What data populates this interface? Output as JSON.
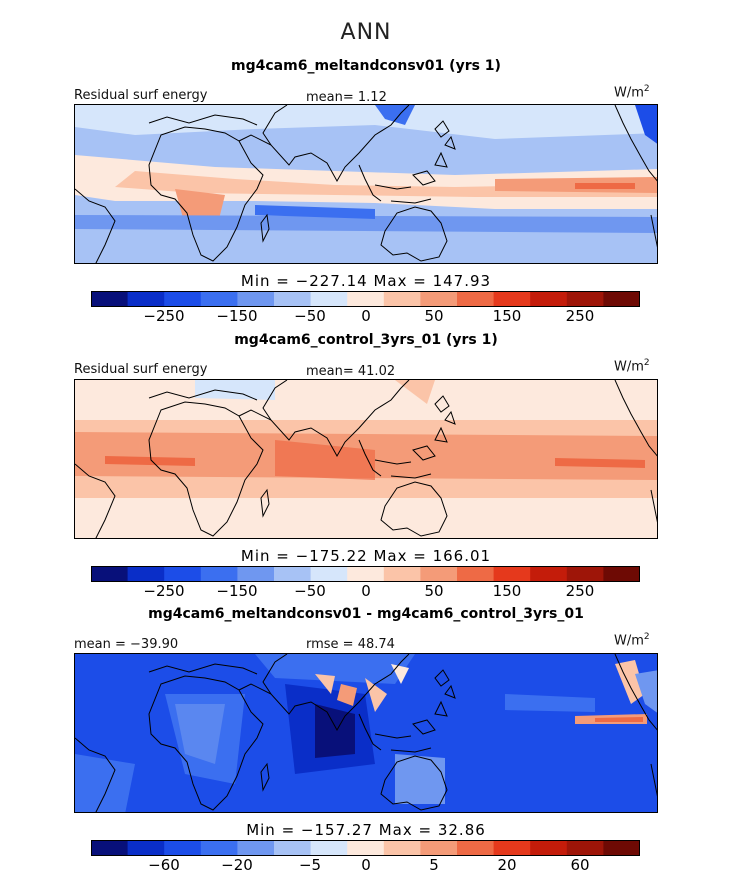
{
  "figure": {
    "season": "ANN"
  },
  "colorbar": {
    "colors": [
      "#08107a",
      "#0a2ec8",
      "#1c4de8",
      "#3b6ff0",
      "#6f97f0",
      "#a7c2f5",
      "#d6e6fb",
      "#fde9dd",
      "#fbc4a8",
      "#f49b78",
      "#ee6a45",
      "#e5391c",
      "#c41c0a",
      "#9e1508",
      "#6e0a04"
    ]
  },
  "panels": [
    {
      "title": "mg4cam6_meltandconsv01 (yrs 1)",
      "left_label": "Residual surf energy",
      "center_label": "mean=   1.12",
      "units_base": "W/m",
      "units_exp": "2",
      "minmax": "Min = −227.14 Max = 147.93",
      "ticks": [
        "−250",
        "−150",
        "−50",
        "0",
        "50",
        "150",
        "250"
      ]
    },
    {
      "title": "mg4cam6_control_3yrs_01 (yrs 1)",
      "left_label": "Residual surf energy",
      "center_label": "mean=  41.02",
      "units_base": "W/m",
      "units_exp": "2",
      "minmax": "Min = −175.22 Max = 166.01",
      "ticks": [
        "−250",
        "−150",
        "−50",
        "0",
        "50",
        "150",
        "250"
      ]
    },
    {
      "title": "mg4cam6_meltandconsv01 - mg4cam6_control_3yrs_01",
      "left_label": "mean = −39.90",
      "center_label": "rmse =  48.74",
      "units_base": "W/m",
      "units_exp": "2",
      "minmax": "Min = −157.27 Max =  32.86",
      "ticks": [
        "−60",
        "−20",
        "−5",
        "0",
        "5",
        "20",
        "60"
      ]
    }
  ],
  "chart_data": [
    {
      "type": "heatmap",
      "title": "mg4cam6_meltandconsv01 (yrs 1)",
      "variable": "Residual surf energy",
      "units": "W/m2",
      "mean": 1.12,
      "min": -227.14,
      "max": 147.93,
      "colorbar_ticks": [
        -250,
        -150,
        -50,
        0,
        50,
        150,
        250
      ]
    },
    {
      "type": "heatmap",
      "title": "mg4cam6_control_3yrs_01 (yrs 1)",
      "variable": "Residual surf energy",
      "units": "W/m2",
      "mean": 41.02,
      "min": -175.22,
      "max": 166.01,
      "colorbar_ticks": [
        -250,
        -150,
        -50,
        0,
        50,
        150,
        250
      ]
    },
    {
      "type": "heatmap",
      "title": "mg4cam6_meltandconsv01 - mg4cam6_control_3yrs_01",
      "units": "W/m2",
      "mean": -39.9,
      "rmse": 48.74,
      "min": -157.27,
      "max": 32.86,
      "colorbar_ticks": [
        -60,
        -20,
        -5,
        0,
        5,
        20,
        60
      ]
    }
  ]
}
